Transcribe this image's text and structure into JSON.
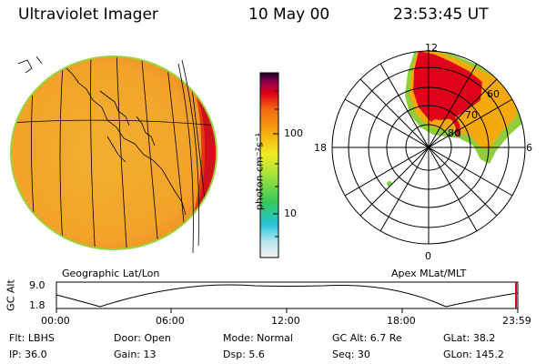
{
  "header": {
    "instrument": "Ultraviolet Imager",
    "date": "10 May 00",
    "time": "23:53:45 UT"
  },
  "colorbar": {
    "unit": "photon cm⁻²s⁻¹",
    "tick_high": "100",
    "tick_low": "10"
  },
  "polar_plot": {
    "mlt_top": "12",
    "mlt_left": "18",
    "mlt_right": "6",
    "mlt_bottom": "0",
    "lat_60": "60",
    "lat_70": "70",
    "lat_80": "80"
  },
  "panel_labels": {
    "left": "Geographic Lat/Lon",
    "right": "Apex MLat/MLT"
  },
  "altitude_plot": {
    "axis_label": "GC Alt",
    "y_high": "9.0",
    "y_low": "1.8",
    "x_ticks": [
      "00:00",
      "06:00",
      "12:00",
      "18:00",
      "23:59"
    ]
  },
  "info": {
    "flt": "Flt: LBHS",
    "ip": "IP: 36.0",
    "door": "Door: Open",
    "gain": "Gain: 13",
    "mode": "Mode: Normal",
    "dsp": "Dsp:    5.6",
    "gcalt": "GC Alt: 6.7 Re",
    "seq": "Seq: 30",
    "glat": "GLat:  38.2",
    "glon": "GLon: 145.2"
  }
}
